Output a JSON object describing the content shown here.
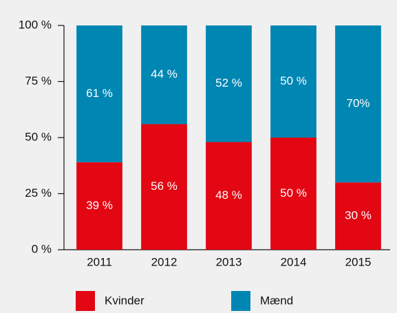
{
  "chart_data": {
    "type": "bar",
    "stacked": true,
    "categories": [
      "2011",
      "2012",
      "2013",
      "2014",
      "2015"
    ],
    "series": [
      {
        "name": "Kvinder",
        "color": "#e30613",
        "values": [
          39,
          56,
          48,
          50,
          30
        ],
        "value_labels": [
          "39 %",
          "56 %",
          "48 %",
          "50 %",
          "30 %"
        ]
      },
      {
        "name": "Mænd",
        "color": "#0086b3",
        "values": [
          61,
          44,
          52,
          50,
          70
        ],
        "value_labels": [
          "61 %",
          "44 %",
          "52 %",
          "50 %",
          "70%"
        ]
      }
    ],
    "ylim": [
      0,
      100
    ],
    "yticks": [
      {
        "value": 0,
        "label": "0 %"
      },
      {
        "value": 25,
        "label": "25 %"
      },
      {
        "value": 50,
        "label": "50 %"
      },
      {
        "value": 75,
        "label": "75 %"
      },
      {
        "value": 100,
        "label": "100 %"
      }
    ],
    "grid": false,
    "legend": "bottom"
  }
}
